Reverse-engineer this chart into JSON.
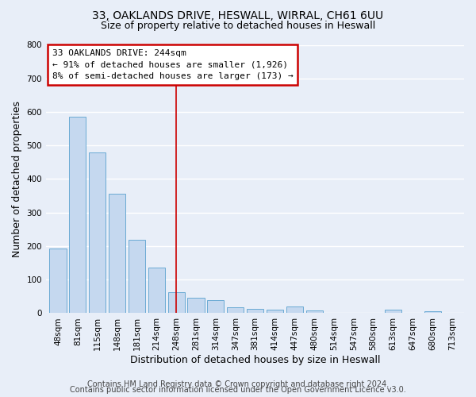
{
  "title": "33, OAKLANDS DRIVE, HESWALL, WIRRAL, CH61 6UU",
  "subtitle": "Size of property relative to detached houses in Heswall",
  "xlabel": "Distribution of detached houses by size in Heswall",
  "ylabel": "Number of detached properties",
  "bar_labels": [
    "48sqm",
    "81sqm",
    "115sqm",
    "148sqm",
    "181sqm",
    "214sqm",
    "248sqm",
    "281sqm",
    "314sqm",
    "347sqm",
    "381sqm",
    "414sqm",
    "447sqm",
    "480sqm",
    "514sqm",
    "547sqm",
    "580sqm",
    "613sqm",
    "647sqm",
    "680sqm",
    "713sqm"
  ],
  "bar_values": [
    193,
    585,
    480,
    355,
    218,
    135,
    62,
    45,
    38,
    17,
    14,
    11,
    20,
    8,
    0,
    0,
    0,
    11,
    0,
    7,
    0
  ],
  "bar_color": "#c5d8ef",
  "bar_edge_color": "#6aaad4",
  "vline_x": 6,
  "vline_color": "#cc0000",
  "ylim": [
    0,
    800
  ],
  "yticks": [
    0,
    100,
    200,
    300,
    400,
    500,
    600,
    700,
    800
  ],
  "annotation_title": "33 OAKLANDS DRIVE: 244sqm",
  "annotation_line1": "← 91% of detached houses are smaller (1,926)",
  "annotation_line2": "8% of semi-detached houses are larger (173) →",
  "annotation_box_color": "#ffffff",
  "annotation_box_edge": "#cc0000",
  "footer1": "Contains HM Land Registry data © Crown copyright and database right 2024.",
  "footer2": "Contains public sector information licensed under the Open Government Licence v3.0.",
  "bg_color": "#e8eef8",
  "plot_bg_color": "#e8eef8",
  "grid_color": "#ffffff",
  "title_fontsize": 10,
  "subtitle_fontsize": 9,
  "axis_label_fontsize": 9,
  "tick_fontsize": 7.5,
  "footer_fontsize": 7
}
